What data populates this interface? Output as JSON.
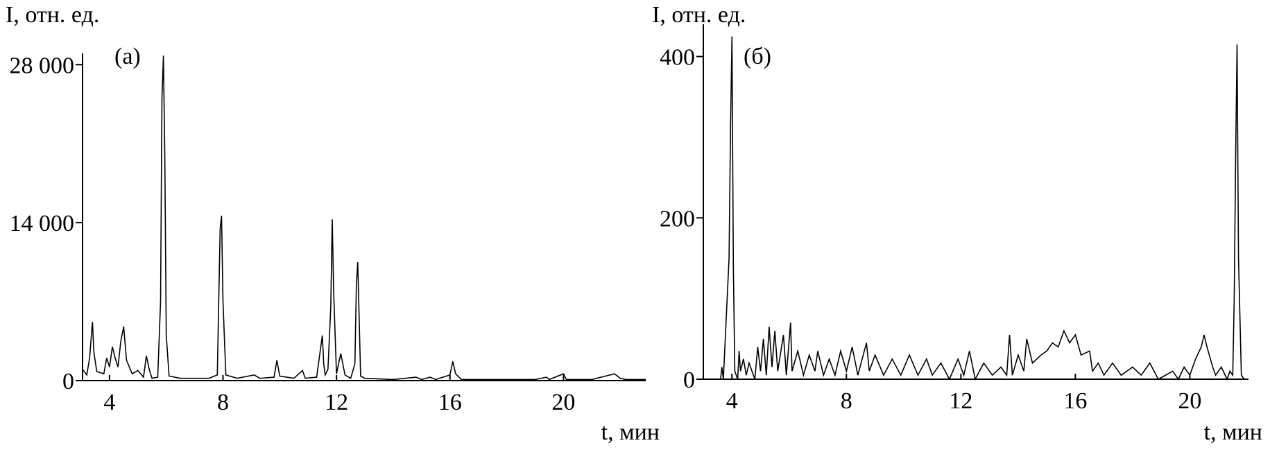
{
  "chart_data": [
    {
      "type": "line",
      "annotation": "(а)",
      "y_label": "I, отн. ед.",
      "x_label": "t, мин",
      "color": "#000000",
      "xlim": [
        3.05,
        22.9
      ],
      "ylim": [
        0,
        29000
      ],
      "xticks": [
        4,
        8,
        12,
        16,
        20
      ],
      "yticks": [
        0,
        {
          "value": 14000,
          "label": "14 000"
        },
        {
          "value": 28000,
          "label": "28 000"
        }
      ],
      "x": [
        3.05,
        3.2,
        3.3,
        3.4,
        3.45,
        3.55,
        3.8,
        3.9,
        4.0,
        4.1,
        4.2,
        4.3,
        4.4,
        4.5,
        4.6,
        4.8,
        5.0,
        5.2,
        5.3,
        5.4,
        5.5,
        5.7,
        5.8,
        5.85,
        5.9,
        5.95,
        6.0,
        6.1,
        6.5,
        7.0,
        7.5,
        7.8,
        7.9,
        7.95,
        8.0,
        8.1,
        8.5,
        9.1,
        9.3,
        9.8,
        9.9,
        10.0,
        10.5,
        10.8,
        10.9,
        11.3,
        11.5,
        11.55,
        11.6,
        11.7,
        11.8,
        11.85,
        11.9,
        12.0,
        12.15,
        12.3,
        12.5,
        12.65,
        12.7,
        12.75,
        12.85,
        13.0,
        14.0,
        14.8,
        15.0,
        15.3,
        15.5,
        16.0,
        16.1,
        16.2,
        16.4,
        17.0,
        18.0,
        19.0,
        19.4,
        19.5,
        20.0,
        20.1,
        21.0,
        21.8,
        22.0,
        22.2,
        22.9
      ],
      "values": [
        1000,
        500,
        2000,
        5200,
        2500,
        800,
        600,
        2000,
        1200,
        3000,
        2000,
        1200,
        3500,
        4800,
        1800,
        600,
        900,
        300,
        2200,
        1000,
        200,
        300,
        7000,
        25000,
        28800,
        20000,
        4000,
        400,
        200,
        200,
        200,
        500,
        13500,
        14600,
        7000,
        500,
        200,
        500,
        200,
        300,
        1800,
        400,
        200,
        900,
        200,
        300,
        4000,
        1500,
        500,
        1000,
        6500,
        14300,
        8000,
        600,
        2400,
        500,
        200,
        1500,
        8500,
        10500,
        400,
        200,
        100,
        300,
        100,
        300,
        100,
        500,
        1700,
        600,
        100,
        100,
        100,
        100,
        300,
        100,
        600,
        100,
        100,
        600,
        200,
        100,
        100
      ]
    },
    {
      "type": "line",
      "annotation": "(б)",
      "y_label": "I, отн. ед.",
      "x_label": "t, мин",
      "color": "#000000",
      "xlim": [
        3.0,
        22.05
      ],
      "ylim": [
        0,
        440
      ],
      "xticks": [
        4,
        8,
        12,
        16,
        20
      ],
      "yticks": [
        0,
        200,
        400
      ],
      "x": [
        3.0,
        3.6,
        3.65,
        3.7,
        3.9,
        3.95,
        4.0,
        4.05,
        4.1,
        4.2,
        4.25,
        4.3,
        4.4,
        4.5,
        4.6,
        4.8,
        4.9,
        5.0,
        5.1,
        5.2,
        5.3,
        5.4,
        5.5,
        5.6,
        5.8,
        5.9,
        6.05,
        6.1,
        6.3,
        6.5,
        6.7,
        6.9,
        7.0,
        7.2,
        7.4,
        7.6,
        7.8,
        8.0,
        8.2,
        8.4,
        8.7,
        8.8,
        9.0,
        9.3,
        9.6,
        9.9,
        10.2,
        10.5,
        10.8,
        11.0,
        11.3,
        11.6,
        11.9,
        12.1,
        12.3,
        12.5,
        12.8,
        13.1,
        13.4,
        13.6,
        13.7,
        13.8,
        14.0,
        14.2,
        14.3,
        14.5,
        14.8,
        15.0,
        15.2,
        15.4,
        15.6,
        15.8,
        16.0,
        16.2,
        16.5,
        16.6,
        16.8,
        17.0,
        17.3,
        17.6,
        18.0,
        18.3,
        18.6,
        18.9,
        19.4,
        19.6,
        19.8,
        20.0,
        20.2,
        20.4,
        20.5,
        20.6,
        20.8,
        20.9,
        21.1,
        21.3,
        21.4,
        21.5,
        21.55,
        21.6,
        21.65,
        21.7,
        21.8,
        21.9,
        22.05
      ],
      "values": [
        0,
        0,
        15,
        0,
        150,
        310,
        425,
        140,
        10,
        0,
        35,
        10,
        25,
        5,
        20,
        0,
        40,
        10,
        50,
        5,
        65,
        15,
        60,
        10,
        55,
        5,
        70,
        10,
        35,
        5,
        30,
        10,
        35,
        5,
        25,
        5,
        35,
        10,
        40,
        5,
        45,
        10,
        30,
        5,
        25,
        5,
        30,
        5,
        25,
        5,
        20,
        0,
        25,
        5,
        35,
        0,
        20,
        5,
        15,
        5,
        55,
        5,
        30,
        10,
        50,
        20,
        30,
        35,
        45,
        40,
        60,
        45,
        55,
        30,
        35,
        10,
        20,
        5,
        20,
        5,
        15,
        5,
        20,
        0,
        10,
        0,
        15,
        5,
        25,
        40,
        55,
        40,
        15,
        5,
        15,
        0,
        10,
        5,
        100,
        270,
        415,
        150,
        5,
        0,
        0
      ]
    }
  ]
}
